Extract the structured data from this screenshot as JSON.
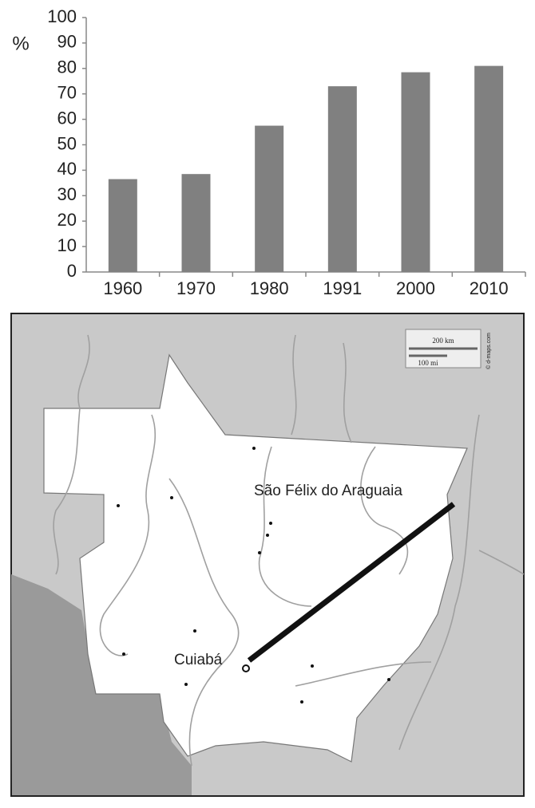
{
  "chart_data": {
    "type": "bar",
    "y_label": "%",
    "categories": [
      "1960",
      "1970",
      "1980",
      "1991",
      "2000",
      "2010"
    ],
    "values": [
      36.5,
      38.5,
      57.5,
      73,
      78.5,
      81
    ],
    "color": "#808080",
    "ylim": [
      0,
      100
    ],
    "yticks": [
      0,
      10,
      20,
      30,
      40,
      50,
      60,
      70,
      80,
      90,
      100
    ],
    "grid": false
  },
  "map": {
    "labels": [
      "São Félix do Araguaia",
      "Cuiabá"
    ],
    "scale": [
      "200 km",
      "100 mi"
    ],
    "credit": "© d-maps.com"
  }
}
